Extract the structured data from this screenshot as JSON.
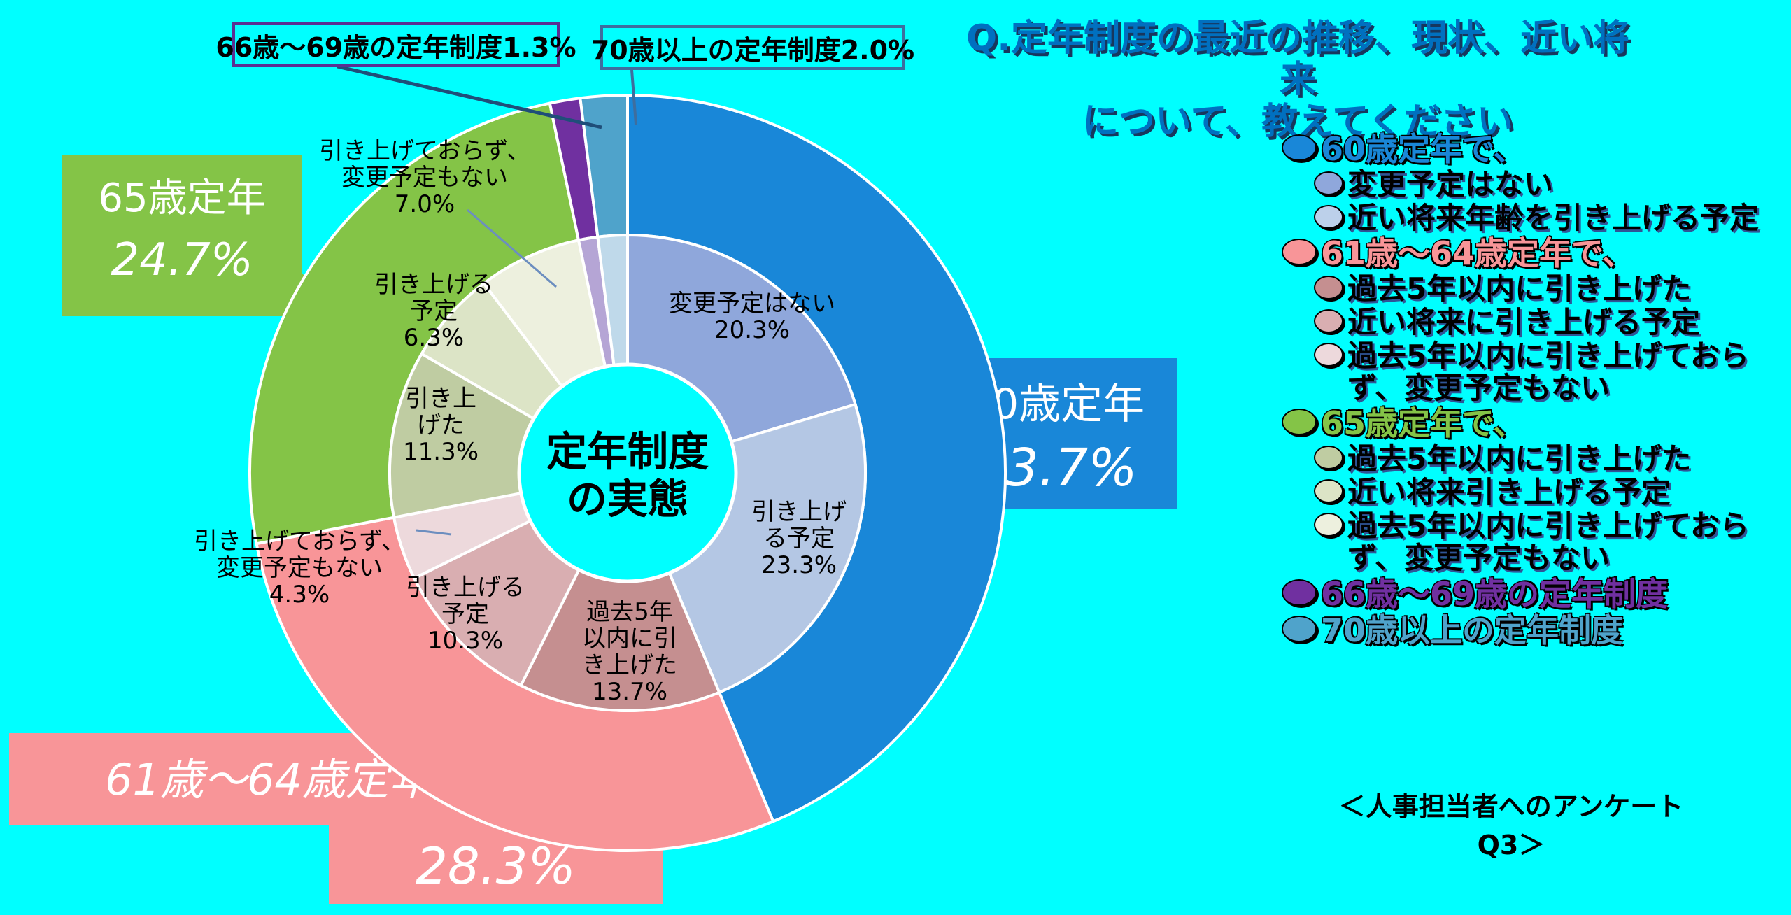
{
  "title": {
    "line1": "Q.定年制度の最近の推移、現状、近い将来",
    "line2": "について、教えてください"
  },
  "center_label": {
    "line1": "定年制度",
    "line2": "の実態"
  },
  "footer": "＜人事担当者へのアンケート　Q3＞",
  "colors": {
    "background": "#00FFFF",
    "title_text": "#0070C0",
    "title_shadow": "#17375E",
    "callout_border_66_69": "#5B2F92",
    "callout_border_70": "#3E6E9E",
    "leader_line": "#6C8EBF"
  },
  "callouts": {
    "box_66_69": "66歳～69歳の定年制度1.3%",
    "box_70": "70歳以上の定年制度2.0%",
    "box_60": {
      "name": "60歳定年",
      "pct": "43.7%"
    },
    "box_61_64": {
      "name": "61歳～64歳定年",
      "pct": "28.3%"
    },
    "box_65": {
      "name": "65歳定年",
      "pct": "24.7%"
    }
  },
  "chart_data": {
    "type": "pie",
    "variant": "nested-donut",
    "title": "定年制度の実態",
    "unit": "%",
    "start_angle_deg": 0,
    "direction": "clockwise",
    "groups": [
      {
        "id": "60",
        "label": "60歳定年",
        "value": 43.7,
        "color": "#1987D8",
        "children": [
          {
            "id": "60-nochange",
            "label": "変更予定はない",
            "value": 20.3,
            "color": "#8FA7DB"
          },
          {
            "id": "60-raise-plan",
            "label": "引き上げる予定",
            "value": 23.3,
            "color": "#B4C7E4"
          }
        ]
      },
      {
        "id": "61-64",
        "label": "61歳～64歳定年",
        "value": 28.3,
        "color": "#F89598",
        "children": [
          {
            "id": "61-raised",
            "label": "過去5年以内に引き上げた",
            "value": 13.7,
            "color": "#C58F90"
          },
          {
            "id": "61-raise-plan",
            "label": "引き上げる予定",
            "value": 10.3,
            "color": "#D9AEB1"
          },
          {
            "id": "61-none",
            "label": "引き上げておらず、変更予定もない",
            "value": 4.3,
            "color": "#EDD9DC"
          }
        ]
      },
      {
        "id": "65",
        "label": "65歳定年",
        "value": 24.7,
        "color": "#84C447",
        "children": [
          {
            "id": "65-raised",
            "label": "引き上げた",
            "value": 11.3,
            "color": "#BFCCA2"
          },
          {
            "id": "65-raise-plan",
            "label": "引き上げる予定",
            "value": 6.3,
            "color": "#DCE4C6"
          },
          {
            "id": "65-none",
            "label": "引き上げておらず、変更予定もない",
            "value": 7.0,
            "color": "#EDF0DE"
          }
        ]
      },
      {
        "id": "66-69",
        "label": "66歳～69歳の定年制度",
        "value": 1.3,
        "color": "#7030A0",
        "children": [
          {
            "id": "66-69-inner",
            "label": "",
            "value": 1.3,
            "color": "#B5A5D5"
          }
        ]
      },
      {
        "id": "70plus",
        "label": "70歳以上の定年制度",
        "value": 2.0,
        "color": "#4FA3CB",
        "children": [
          {
            "id": "70plus-inner",
            "label": "",
            "value": 2.0,
            "color": "#BFD9EA"
          }
        ]
      }
    ]
  },
  "slice_labels": [
    {
      "id": "60-nochange",
      "lines": [
        "変更予定はない",
        "20.3%"
      ]
    },
    {
      "id": "60-raise-plan",
      "lines": [
        "引き上げ",
        "る予定",
        "23.3%"
      ]
    },
    {
      "id": "61-raised",
      "lines": [
        "過去5年",
        "以内に引",
        "き上げた",
        "13.7%"
      ]
    },
    {
      "id": "61-raise-plan",
      "lines": [
        "引き上げる",
        "予定",
        "10.3%"
      ]
    },
    {
      "id": "61-none",
      "lines": [
        "引き上げておらず、",
        "変更予定もない",
        "4.3%"
      ]
    },
    {
      "id": "65-raised",
      "lines": [
        "引き上",
        "げた",
        "11.3%"
      ]
    },
    {
      "id": "65-raise-plan",
      "lines": [
        "引き上げる",
        "予定",
        "6.3%"
      ]
    },
    {
      "id": "65-none",
      "lines": [
        "引き上げておらず、",
        "変更予定もない",
        "7.0%"
      ]
    }
  ],
  "legend": {
    "items": [
      {
        "level": 1,
        "color": "#1987D8",
        "text_color": "#1987D8",
        "label": "60歳定年で、"
      },
      {
        "level": 2,
        "color": "#8FA7DB",
        "label": "変更予定はない"
      },
      {
        "level": 2,
        "color": "#BCD0EA",
        "label": "近い将来年齢を引き上げる予定"
      },
      {
        "level": 1,
        "color": "#F89598",
        "text_color": "#F89598",
        "label": "61歳～64歳定年で、"
      },
      {
        "level": 2,
        "color": "#C58F90",
        "label": "過去5年以内に引き上げた"
      },
      {
        "level": 2,
        "color": "#D9AEB1",
        "label": "近い将来に引き上げる予定"
      },
      {
        "level": 2,
        "color": "#EDD9DC",
        "label": "過去5年以内に引き上げておらず、変更予定もない"
      },
      {
        "level": 1,
        "color": "#84C447",
        "text_color": "#84C447",
        "label": "65歳定年で、"
      },
      {
        "level": 2,
        "color": "#BFCCA2",
        "label": "過去5年以内に引き上げた"
      },
      {
        "level": 2,
        "color": "#DCE4C6",
        "label": "近い将来引き上げる予定"
      },
      {
        "level": 2,
        "color": "#EDF0DE",
        "label": "過去5年以内に引き上げておらず、変更予定もない"
      },
      {
        "level": 1,
        "color": "#7030A0",
        "text_color": "#7030A0",
        "label": "66歳～69歳の定年制度"
      },
      {
        "level": 1,
        "color": "#4FA3CB",
        "text_color": "#4FA3CB",
        "label": "70歳以上の定年制度"
      }
    ]
  }
}
